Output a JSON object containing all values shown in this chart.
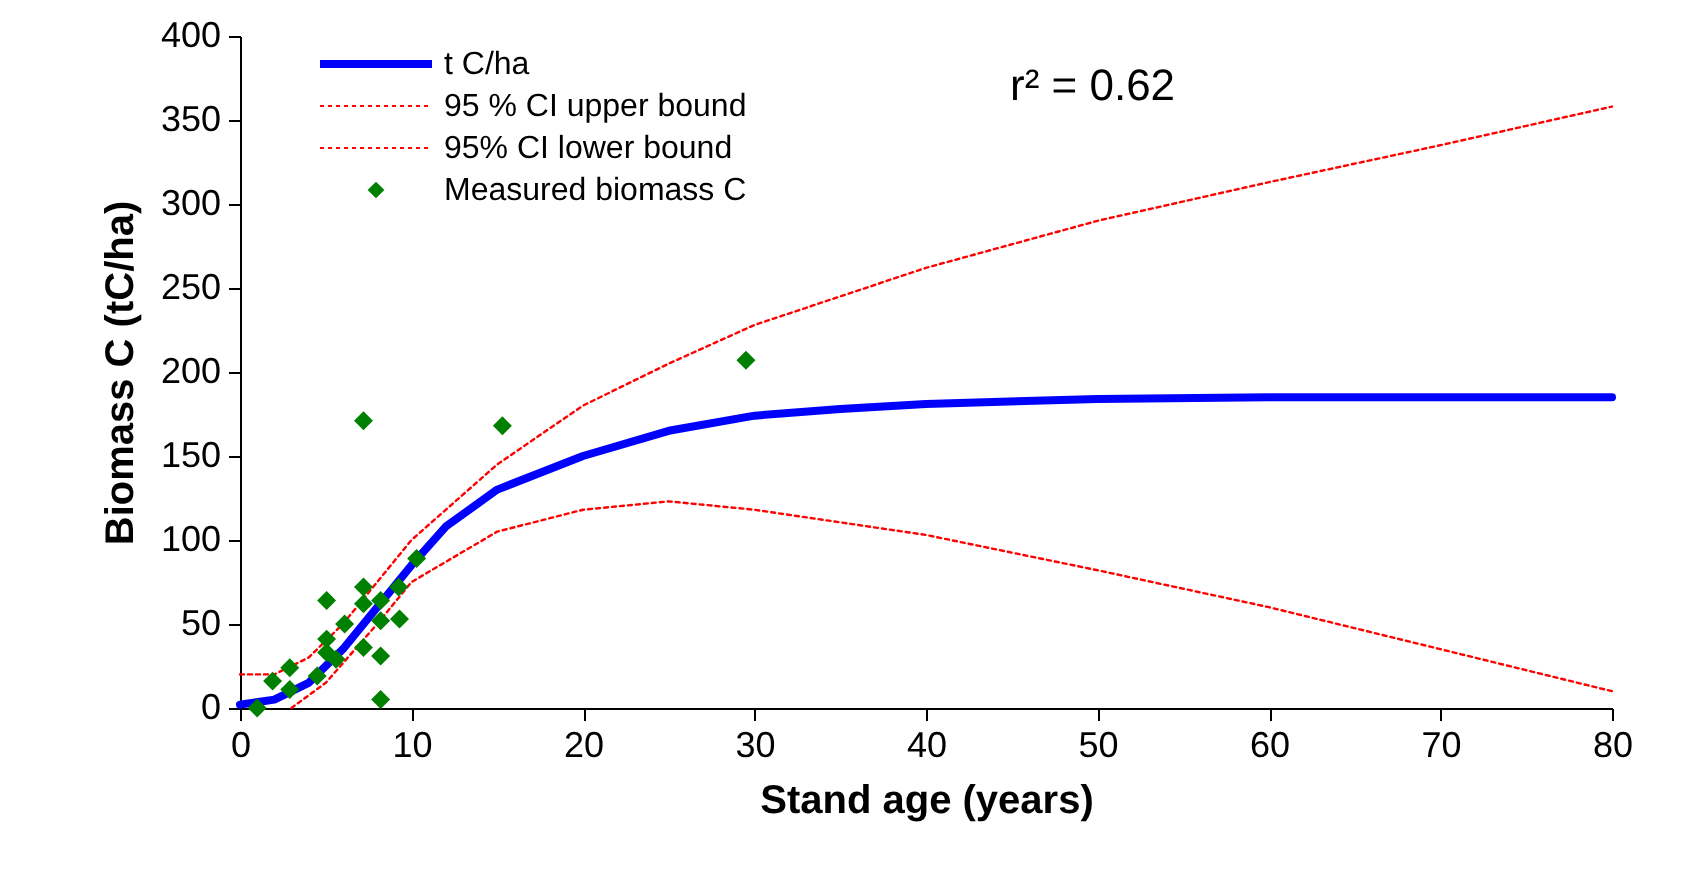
{
  "chart_data": {
    "type": "line",
    "xlabel": "Stand age (years)",
    "ylabel": "Biomass C (tC/ha)",
    "xlim": [
      0,
      80
    ],
    "ylim": [
      0,
      400
    ],
    "xticks": [
      0,
      10,
      20,
      30,
      40,
      50,
      60,
      70,
      80
    ],
    "yticks": [
      0,
      50,
      100,
      150,
      200,
      250,
      300,
      350,
      400
    ],
    "grid": false,
    "legend": "top left",
    "annotations": [
      "r² = 0.62"
    ],
    "series": [
      {
        "name": "t C/ha",
        "type": "line",
        "line_style": "solid",
        "color": "#0000ff",
        "x": [
          0,
          2,
          4,
          6,
          8,
          10,
          12,
          15,
          20,
          25,
          30,
          35,
          40,
          50,
          60,
          80
        ],
        "values": [
          2,
          5,
          15,
          35,
          60,
          85,
          108,
          130,
          150,
          165,
          174,
          178,
          181,
          184,
          185,
          185
        ]
      },
      {
        "name": "95 % CI upper bound",
        "type": "line",
        "line_style": "dotted",
        "color": "#ff0000",
        "x": [
          0,
          2,
          4,
          6,
          8,
          10,
          15,
          20,
          25,
          30,
          40,
          50,
          60,
          70,
          80
        ],
        "values": [
          20,
          20,
          30,
          50,
          75,
          100,
          145,
          180,
          205,
          228,
          262,
          290,
          313,
          335,
          358
        ]
      },
      {
        "name": "95% CI lower bound",
        "type": "line",
        "line_style": "dotted",
        "color": "#ff0000",
        "x": [
          3,
          5,
          8,
          10,
          15,
          20,
          25,
          30,
          40,
          50,
          60,
          70,
          80
        ],
        "values": [
          0,
          15,
          50,
          75,
          105,
          118,
          123,
          118,
          103,
          82,
          60,
          35,
          10
        ]
      },
      {
        "name": "Measured biomass C",
        "type": "scatter",
        "marker": "diamond",
        "color": "#008000",
        "x": [
          1,
          1.9,
          2.9,
          2.9,
          4.5,
          5.05,
          5.05,
          5.05,
          5.6,
          6.1,
          7.2,
          7.2,
          7.2,
          7.2,
          8.2,
          8.2,
          8.2,
          8.2,
          9.3,
          9.25,
          10.3,
          15.3,
          29.5
        ],
        "values": [
          0,
          16,
          24,
          11,
          19,
          33,
          41,
          64,
          29,
          50,
          171,
          72,
          62,
          36,
          64,
          52,
          31,
          5,
          53,
          72,
          89,
          168,
          207
        ]
      }
    ]
  }
}
